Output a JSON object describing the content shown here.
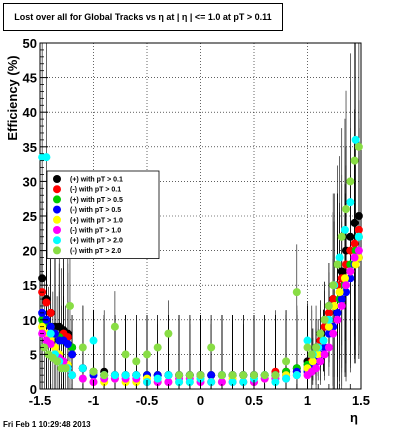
{
  "header": {
    "title": "Lost over all for Global Tracks vs    η at |   η | <= 1.0 at pT > 0.11",
    "timestamp": "Fri Feb  1 10:29:48 2013"
  },
  "chart_data": {
    "type": "scatter",
    "title": "Lost over all for Global Tracks vs    η at |   η | <= 1.0 at pT > 0.11",
    "xlabel": "η",
    "ylabel": "Efficiency (%)",
    "xlim": [
      -1.5,
      1.5
    ],
    "ylim": [
      0,
      50
    ],
    "x_ticks": [
      "-1.5",
      "-1",
      "-0.5",
      "0",
      "0.5",
      "1",
      "1.5"
    ],
    "y_ticks": [
      "0",
      "5",
      "10",
      "15",
      "20",
      "25",
      "30",
      "35",
      "40",
      "45",
      "50"
    ],
    "grid": true,
    "legend_position": "left-middle",
    "series": [
      {
        "name": "(+) with pT > 0.1",
        "color": "#000000",
        "x": [
          -1.48,
          -1.44,
          -1.4,
          -1.36,
          -1.32,
          -1.28,
          -1.24,
          -1.2,
          -1.1,
          -1.0,
          -0.9,
          -0.8,
          -0.7,
          -0.6,
          -0.5,
          -0.4,
          -0.3,
          -0.2,
          -0.1,
          0.0,
          0.1,
          0.2,
          0.3,
          0.4,
          0.5,
          0.6,
          0.7,
          0.8,
          0.9,
          1.0,
          1.04,
          1.08,
          1.12,
          1.16,
          1.2,
          1.24,
          1.28,
          1.32,
          1.36,
          1.4,
          1.44,
          1.48
        ],
        "y": [
          16,
          13,
          11,
          9,
          9,
          8.5,
          8,
          6,
          3,
          2.5,
          2.5,
          2,
          2,
          2,
          2,
          2,
          2,
          2,
          2,
          2,
          2,
          2,
          2,
          2,
          2,
          2,
          2,
          2.5,
          3,
          4,
          5,
          6,
          8,
          10,
          12,
          13,
          15,
          17,
          20,
          22,
          24,
          25
        ]
      },
      {
        "name": "(-) with pT > 0.1",
        "color": "#ff0000",
        "x": [
          -1.48,
          -1.44,
          -1.4,
          -1.36,
          -1.32,
          -1.28,
          -1.24,
          -1.2,
          -1.1,
          -1.0,
          -0.9,
          -0.8,
          -0.7,
          -0.6,
          -0.5,
          -0.4,
          -0.3,
          -0.2,
          -0.1,
          0.0,
          0.1,
          0.2,
          0.3,
          0.4,
          0.5,
          0.6,
          0.7,
          0.8,
          0.9,
          1.0,
          1.04,
          1.08,
          1.12,
          1.16,
          1.2,
          1.24,
          1.28,
          1.32,
          1.36,
          1.4,
          1.44,
          1.48
        ],
        "y": [
          14,
          12.5,
          11,
          8,
          7.5,
          8,
          7.5,
          5,
          3,
          2.5,
          2,
          2,
          2,
          2,
          2,
          2,
          2,
          2,
          2,
          2,
          2,
          2,
          2,
          2,
          2,
          2,
          2.5,
          2.5,
          2.5,
          3,
          4,
          5,
          7,
          9,
          11,
          13,
          15,
          16,
          18,
          20,
          21,
          23
        ]
      },
      {
        "name": "(+) with pT > 0.5",
        "color": "#00cc00",
        "x": [
          -1.48,
          -1.44,
          -1.4,
          -1.36,
          -1.32,
          -1.3,
          -1.2,
          -1.1,
          -1.0,
          -0.9,
          -0.8,
          -0.7,
          -0.6,
          -0.5,
          -0.4,
          -0.3,
          -0.2,
          -0.1,
          0.0,
          0.1,
          0.2,
          0.3,
          0.4,
          0.5,
          0.6,
          0.7,
          0.8,
          0.9,
          1.0,
          1.05,
          1.1,
          1.15,
          1.2,
          1.25,
          1.3,
          1.35,
          1.4,
          1.45,
          1.48
        ],
        "y": [
          10,
          9.5,
          9,
          8,
          7.5,
          7,
          6,
          3,
          2.5,
          2,
          2,
          2,
          2,
          2,
          2,
          2,
          2,
          2,
          2,
          2,
          2,
          2,
          2,
          2,
          2,
          2,
          2.5,
          3,
          3.5,
          5,
          6,
          7,
          9,
          12,
          13,
          15,
          18,
          20,
          22
        ]
      },
      {
        "name": "(-) with pT > 0.5",
        "color": "#0000ff",
        "x": [
          -1.48,
          -1.44,
          -1.4,
          -1.36,
          -1.32,
          -1.28,
          -1.24,
          -1.2,
          -1.1,
          -1.0,
          -0.9,
          -0.8,
          -0.7,
          -0.6,
          -0.5,
          -0.4,
          -0.3,
          -0.2,
          -0.1,
          0.0,
          0.1,
          0.2,
          0.3,
          0.4,
          0.5,
          0.6,
          0.7,
          0.8,
          0.9,
          1.0,
          1.04,
          1.08,
          1.12,
          1.16,
          1.2,
          1.24,
          1.28,
          1.32,
          1.36,
          1.4,
          1.44,
          1.48
        ],
        "y": [
          11,
          10,
          9,
          8,
          7,
          7,
          6.5,
          5,
          3,
          2,
          2,
          2,
          2,
          2,
          2,
          2,
          2,
          2,
          2,
          2,
          2,
          2,
          2,
          2,
          2,
          2,
          2,
          2,
          2.5,
          2.5,
          3,
          4,
          5,
          6,
          8,
          9,
          11,
          13,
          14,
          16,
          18,
          19
        ]
      },
      {
        "name": "(+) with pT > 1.0",
        "color": "#ffff00",
        "x": [
          -1.48,
          -1.44,
          -1.4,
          -1.36,
          -1.32,
          -1.28,
          -1.24,
          -1.2,
          -1.1,
          -1.0,
          -0.9,
          -0.8,
          -0.7,
          -0.6,
          -0.5,
          -0.4,
          -0.3,
          -0.2,
          -0.1,
          0.0,
          0.1,
          0.2,
          0.3,
          0.4,
          0.5,
          0.6,
          0.7,
          0.8,
          0.9,
          1.0,
          1.05,
          1.1,
          1.15,
          1.2,
          1.25,
          1.3,
          1.35,
          1.4,
          1.45,
          1.48
        ],
        "y": [
          9,
          8,
          7,
          6,
          5,
          4,
          3.5,
          2,
          1.5,
          1,
          1,
          1.5,
          1,
          1,
          1.5,
          1,
          1,
          1,
          1,
          1.5,
          1,
          1,
          1.5,
          1,
          1,
          1.5,
          1.5,
          2,
          2,
          3,
          4,
          5,
          7,
          9,
          12,
          14,
          16,
          17,
          18,
          19
        ]
      },
      {
        "name": "(-) with pT > 1.0",
        "color": "#ff00ff",
        "x": [
          -1.48,
          -1.44,
          -1.4,
          -1.36,
          -1.32,
          -1.28,
          -1.24,
          -1.2,
          -1.1,
          -1.0,
          -0.9,
          -0.8,
          -0.7,
          -0.6,
          -0.5,
          -0.4,
          -0.3,
          -0.2,
          -0.1,
          0.0,
          0.1,
          0.2,
          0.3,
          0.4,
          0.5,
          0.6,
          0.7,
          0.8,
          0.9,
          1.0,
          1.04,
          1.08,
          1.12,
          1.16,
          1.2,
          1.24,
          1.28,
          1.32,
          1.36,
          1.4,
          1.44,
          1.48
        ],
        "y": [
          8,
          7,
          6.5,
          5,
          4.5,
          4,
          3,
          2,
          1.5,
          1,
          1.5,
          1.5,
          1.5,
          1.5,
          1,
          1,
          1,
          1.5,
          1.5,
          1,
          1,
          1,
          1,
          1,
          1,
          1.5,
          1.5,
          1.5,
          2,
          2,
          2.5,
          3,
          4,
          5,
          6,
          8,
          10,
          12,
          15,
          17,
          19,
          20
        ]
      },
      {
        "name": "(+) with pT > 2.0",
        "color": "#00ffff",
        "x": [
          -1.48,
          -1.44,
          -1.4,
          -1.36,
          -1.32,
          -1.28,
          -1.24,
          -1.2,
          -1.1,
          -1.0,
          -0.9,
          -0.8,
          -0.7,
          -0.6,
          -0.5,
          -0.4,
          -0.3,
          -0.2,
          -0.1,
          0.0,
          0.1,
          0.2,
          0.3,
          0.4,
          0.5,
          0.6,
          0.7,
          0.8,
          0.9,
          1.0,
          1.05,
          1.1,
          1.15,
          1.2,
          1.25,
          1.3,
          1.35,
          1.4,
          1.45,
          1.48
        ],
        "y": [
          33.5,
          33.5,
          8,
          5,
          4,
          3,
          3,
          2,
          3,
          7,
          2,
          2,
          2,
          2,
          1,
          1.5,
          2,
          1,
          1,
          1.5,
          1,
          2,
          1,
          1,
          1.5,
          2,
          1,
          1.5,
          2,
          7,
          5,
          6,
          7,
          10,
          15,
          19,
          23,
          27,
          36,
          22
        ]
      },
      {
        "name": "(-) with pT > 2.0",
        "color": "#88dd44",
        "x": [
          -1.46,
          -1.42,
          -1.38,
          -1.34,
          -1.3,
          -1.26,
          -1.22,
          -1.1,
          -1.0,
          -0.9,
          -0.8,
          -0.7,
          -0.6,
          -0.5,
          -0.4,
          -0.3,
          -0.2,
          -0.1,
          0.0,
          0.1,
          0.2,
          0.3,
          0.4,
          0.5,
          0.6,
          0.7,
          0.8,
          0.9,
          1.0,
          1.04,
          1.08,
          1.12,
          1.16,
          1.2,
          1.24,
          1.28,
          1.32,
          1.36,
          1.4,
          1.44,
          1.48
        ],
        "y": [
          6,
          5,
          4.5,
          4,
          3,
          3,
          12,
          6,
          2.5,
          2,
          9,
          5,
          4,
          5,
          6,
          8,
          2,
          2,
          2,
          6,
          2,
          2,
          2,
          2,
          2,
          2,
          4,
          14,
          6,
          5,
          6,
          8,
          10,
          12,
          15,
          18,
          22,
          26,
          30,
          33,
          35
        ]
      }
    ]
  }
}
